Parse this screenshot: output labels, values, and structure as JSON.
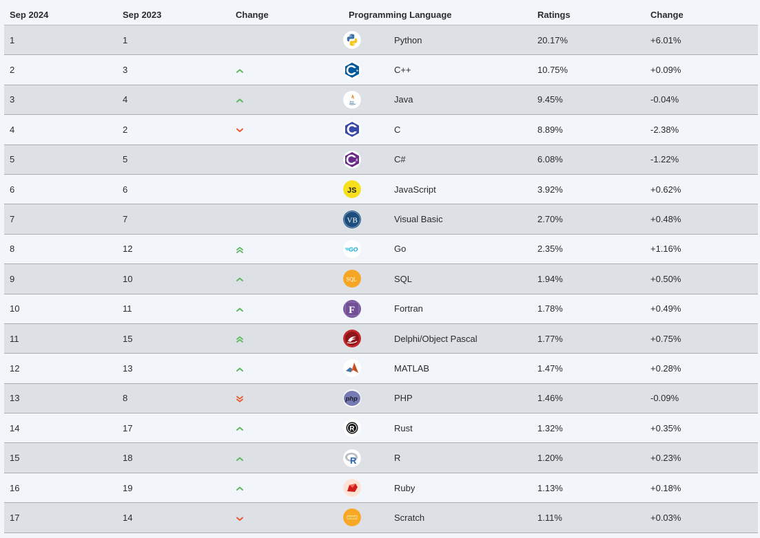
{
  "header": {
    "col_sep2024": "Sep 2024",
    "col_sep2023": "Sep 2023",
    "col_change": "Change",
    "col_language": "Programming Language",
    "col_ratings": "Ratings",
    "col_change2": "Change"
  },
  "colors": {
    "up": "#5cb85c",
    "down": "#e8572e",
    "row_odd": "#dde1e5",
    "row_even": "#f2f6fb"
  },
  "rows": [
    {
      "rank": "1",
      "prev": "1",
      "trend": "none",
      "language": "Python",
      "icon": "python-icon",
      "rating": "20.17%",
      "change": "+6.01%"
    },
    {
      "rank": "2",
      "prev": "3",
      "trend": "up",
      "language": "C++",
      "icon": "cpp-icon",
      "rating": "10.75%",
      "change": "+0.09%"
    },
    {
      "rank": "3",
      "prev": "4",
      "trend": "up",
      "language": "Java",
      "icon": "java-icon",
      "rating": "9.45%",
      "change": "-0.04%"
    },
    {
      "rank": "4",
      "prev": "2",
      "trend": "down",
      "language": "C",
      "icon": "c-icon",
      "rating": "8.89%",
      "change": "-2.38%"
    },
    {
      "rank": "5",
      "prev": "5",
      "trend": "none",
      "language": "C#",
      "icon": "csharp-icon",
      "rating": "6.08%",
      "change": "-1.22%"
    },
    {
      "rank": "6",
      "prev": "6",
      "trend": "none",
      "language": "JavaScript",
      "icon": "javascript-icon",
      "rating": "3.92%",
      "change": "+0.62%"
    },
    {
      "rank": "7",
      "prev": "7",
      "trend": "none",
      "language": "Visual Basic",
      "icon": "visual-basic-icon",
      "rating": "2.70%",
      "change": "+0.48%"
    },
    {
      "rank": "8",
      "prev": "12",
      "trend": "double-up",
      "language": "Go",
      "icon": "go-icon",
      "rating": "2.35%",
      "change": "+1.16%"
    },
    {
      "rank": "9",
      "prev": "10",
      "trend": "up",
      "language": "SQL",
      "icon": "sql-icon",
      "rating": "1.94%",
      "change": "+0.50%"
    },
    {
      "rank": "10",
      "prev": "11",
      "trend": "up",
      "language": "Fortran",
      "icon": "fortran-icon",
      "rating": "1.78%",
      "change": "+0.49%"
    },
    {
      "rank": "11",
      "prev": "15",
      "trend": "double-up",
      "language": "Delphi/Object Pascal",
      "icon": "delphi-icon",
      "rating": "1.77%",
      "change": "+0.75%"
    },
    {
      "rank": "12",
      "prev": "13",
      "trend": "up",
      "language": "MATLAB",
      "icon": "matlab-icon",
      "rating": "1.47%",
      "change": "+0.28%"
    },
    {
      "rank": "13",
      "prev": "8",
      "trend": "double-down",
      "language": "PHP",
      "icon": "php-icon",
      "rating": "1.46%",
      "change": "-0.09%"
    },
    {
      "rank": "14",
      "prev": "17",
      "trend": "up",
      "language": "Rust",
      "icon": "rust-icon",
      "rating": "1.32%",
      "change": "+0.35%"
    },
    {
      "rank": "15",
      "prev": "18",
      "trend": "up",
      "language": "R",
      "icon": "r-icon",
      "rating": "1.20%",
      "change": "+0.23%"
    },
    {
      "rank": "16",
      "prev": "19",
      "trend": "up",
      "language": "Ruby",
      "icon": "ruby-icon",
      "rating": "1.13%",
      "change": "+0.18%"
    },
    {
      "rank": "17",
      "prev": "14",
      "trend": "down",
      "language": "Scratch",
      "icon": "scratch-icon",
      "rating": "1.11%",
      "change": "+0.03%"
    }
  ]
}
